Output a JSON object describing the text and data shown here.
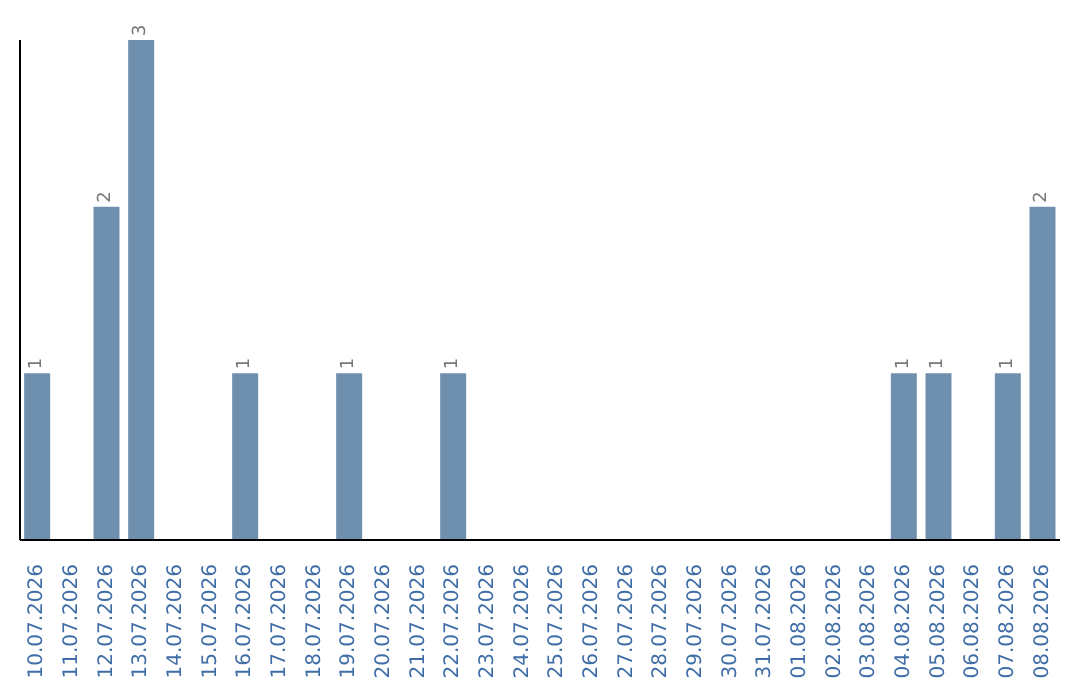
{
  "chart_data": {
    "type": "bar",
    "categories": [
      "10.07.2026",
      "11.07.2026",
      "12.07.2026",
      "13.07.2026",
      "14.07.2026",
      "15.07.2026",
      "16.07.2026",
      "17.07.2026",
      "18.07.2026",
      "19.07.2026",
      "20.07.2026",
      "21.07.2026",
      "22.07.2026",
      "23.07.2026",
      "24.07.2026",
      "25.07.2026",
      "26.07.2026",
      "27.07.2026",
      "28.07.2026",
      "29.07.2026",
      "30.07.2026",
      "31.07.2026",
      "01.08.2026",
      "02.08.2026",
      "03.08.2026",
      "04.08.2026",
      "05.08.2026",
      "06.08.2026",
      "07.08.2026",
      "08.08.2026"
    ],
    "values": [
      1,
      0,
      2,
      3,
      0,
      0,
      1,
      0,
      0,
      1,
      0,
      0,
      1,
      0,
      0,
      0,
      0,
      0,
      0,
      0,
      0,
      0,
      0,
      0,
      0,
      1,
      1,
      0,
      1,
      2
    ],
    "value_labels": [
      "1",
      null,
      "2",
      "3",
      null,
      null,
      "1",
      null,
      null,
      "1",
      null,
      null,
      "1",
      null,
      null,
      null,
      null,
      null,
      null,
      null,
      null,
      null,
      null,
      null,
      null,
      "1",
      "1",
      null,
      "1",
      "2"
    ],
    "color": "#6f8fae",
    "grid": false,
    "legend": false
  }
}
